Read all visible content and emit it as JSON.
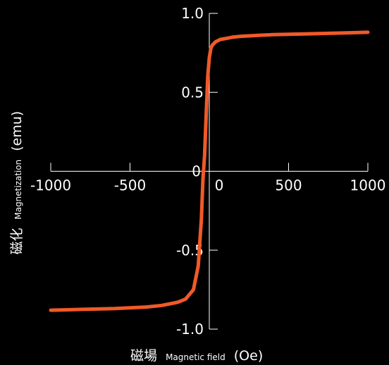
{
  "chart_data": {
    "type": "line",
    "xlabel": {
      "jp": "磁場",
      "en": "Magnetic field",
      "unit": "(Oe)"
    },
    "ylabel": {
      "jp": "磁化",
      "en": "Magnetization",
      "unit": "(emu)"
    },
    "xlim": [
      -1000,
      1000
    ],
    "ylim": [
      -1.0,
      1.0
    ],
    "x_ticks": [
      -1000,
      -500,
      0,
      500,
      1000
    ],
    "x_tick_labels": [
      "-1000",
      "-500",
      "0",
      "500",
      "1000"
    ],
    "y_ticks": [
      1.0,
      0.5,
      0,
      -0.5,
      -1.0
    ],
    "y_tick_labels": [
      "1.0",
      "0.5",
      "0",
      "-0.5",
      "-1.0"
    ],
    "grid": false,
    "series": [
      {
        "color": "#f05a28",
        "x": [
          -1000,
          -800,
          -600,
          -400,
          -300,
          -200,
          -150,
          -100,
          -70,
          -50,
          -40,
          -30,
          -20,
          -10,
          0,
          10,
          20,
          30,
          40,
          50,
          70,
          100,
          150,
          200,
          300,
          400,
          600,
          800,
          1000
        ],
        "y": [
          -0.88,
          -0.875,
          -0.87,
          -0.86,
          -0.85,
          -0.83,
          -0.81,
          -0.75,
          -0.6,
          -0.3,
          -0.05,
          0.1,
          0.35,
          0.6,
          0.72,
          0.78,
          0.8,
          0.81,
          0.82,
          0.825,
          0.835,
          0.84,
          0.85,
          0.855,
          0.86,
          0.865,
          0.87,
          0.875,
          0.88
        ]
      }
    ]
  }
}
